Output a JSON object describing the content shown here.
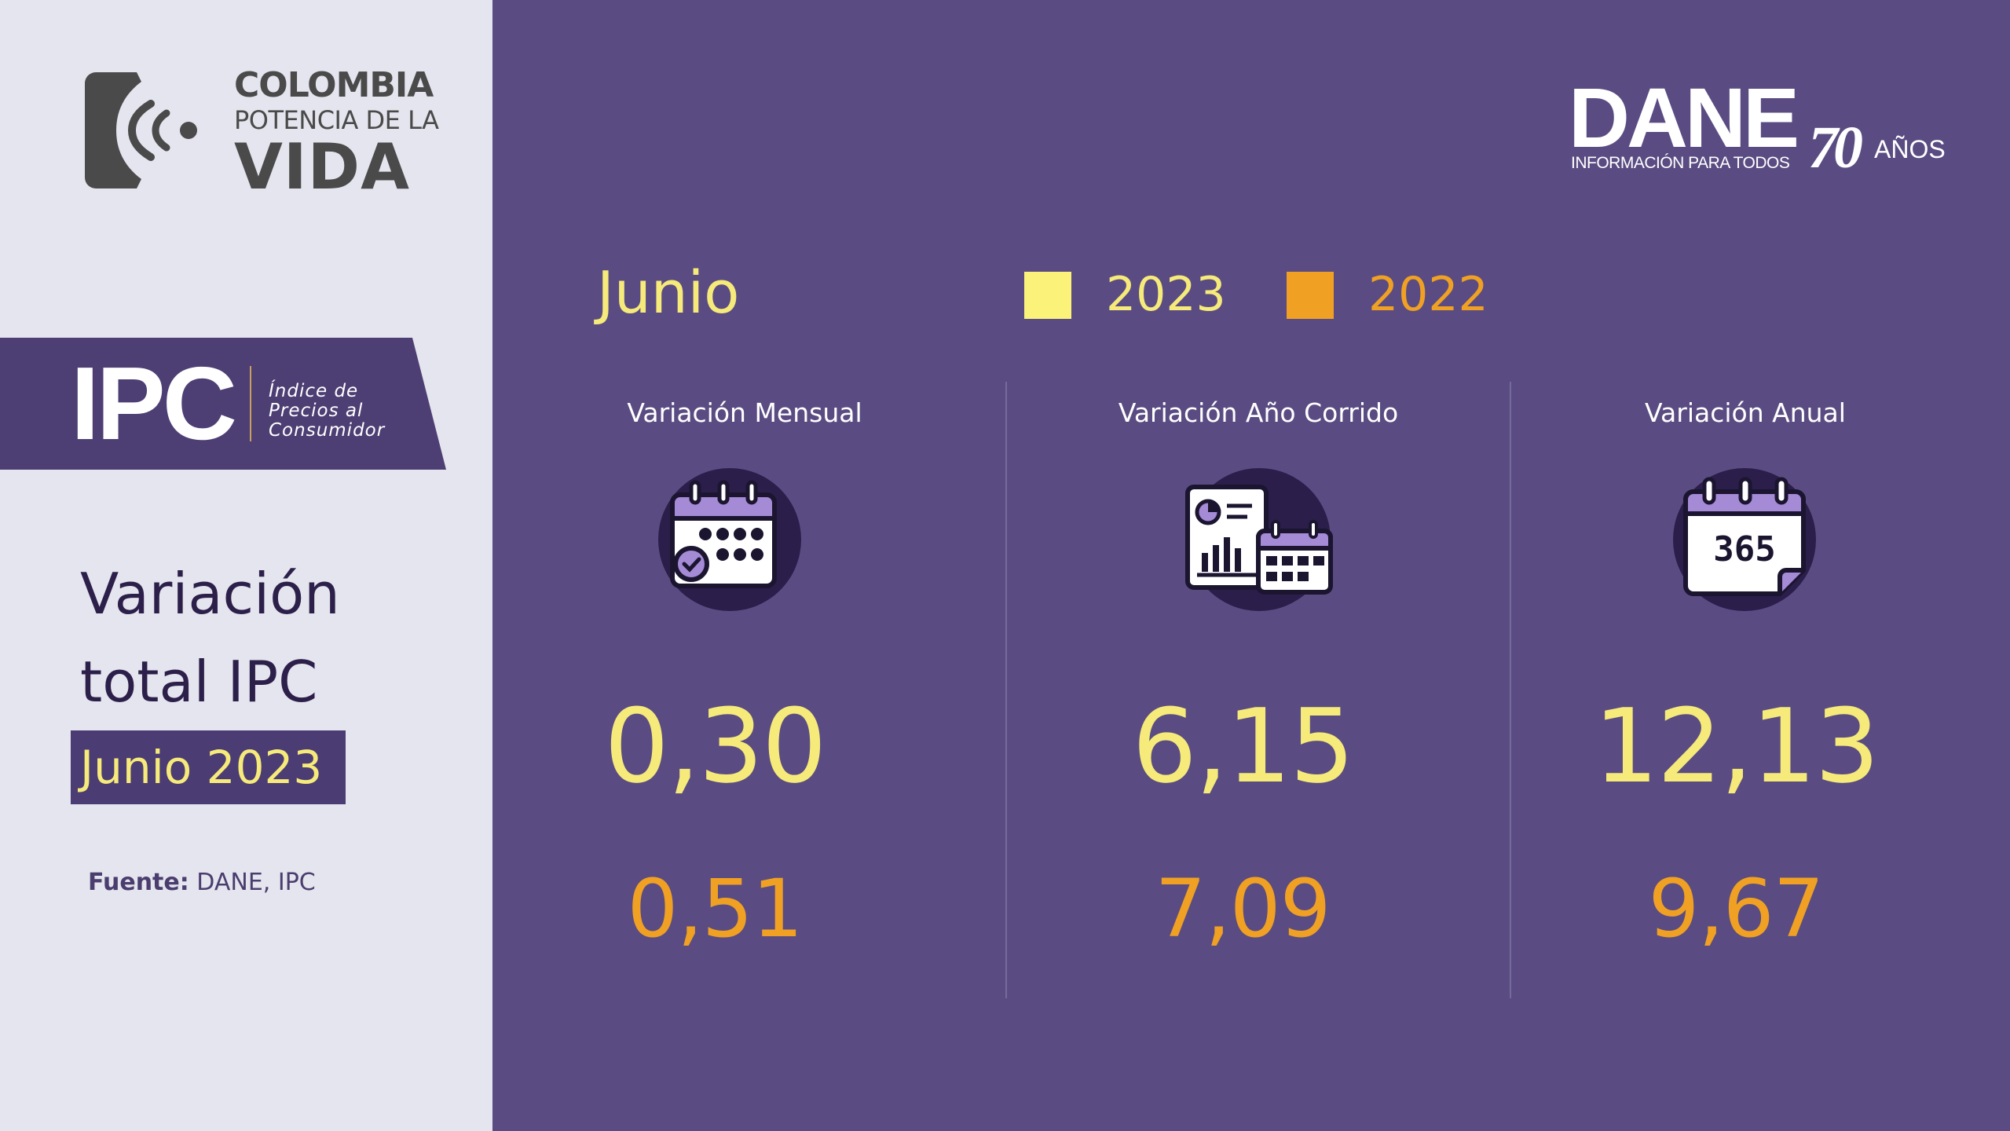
{
  "branding": {
    "gov_logo": {
      "line1": "COLOMBIA",
      "line2": "POTENCIA DE LA",
      "line3": "VIDA"
    },
    "dane_logo": {
      "name": "DANE",
      "tagline": "INFORMACIÓN PARA TODOS",
      "anniversary_number": "70",
      "anniversary_word": "AÑOS"
    }
  },
  "sidebar": {
    "ipc_acronym": "IPC",
    "ipc_full_name": [
      "Índice de",
      "Precios al",
      "Consumidor"
    ],
    "title_line1": "Variación",
    "title_line2": "total IPC",
    "period": "Junio 2023",
    "source_label": "Fuente:",
    "source_value": "DANE, IPC"
  },
  "header": {
    "month": "Junio",
    "legend": [
      {
        "label": "2023",
        "color": "#fbf27a"
      },
      {
        "label": "2022",
        "color": "#f0a123"
      }
    ]
  },
  "columns": [
    {
      "title": "Variación Mensual",
      "icon": "calendar-check-icon",
      "value_2023": "0,30",
      "value_2022": "0,51"
    },
    {
      "title": "Variación Año Corrido",
      "icon": "report-calendar-icon",
      "value_2023": "6,15",
      "value_2022": "7,09"
    },
    {
      "title": "Variación Anual",
      "icon": "calendar-365-icon",
      "value_2023": "12,13",
      "value_2022": "9,67",
      "icon_text": "365"
    }
  ],
  "colors": {
    "left_panel": "#e4e5ee",
    "right_panel": "#5a4c82",
    "banner": "#4d3f74",
    "value_2023": "#f6ea7a",
    "value_2022": "#f0a123"
  }
}
